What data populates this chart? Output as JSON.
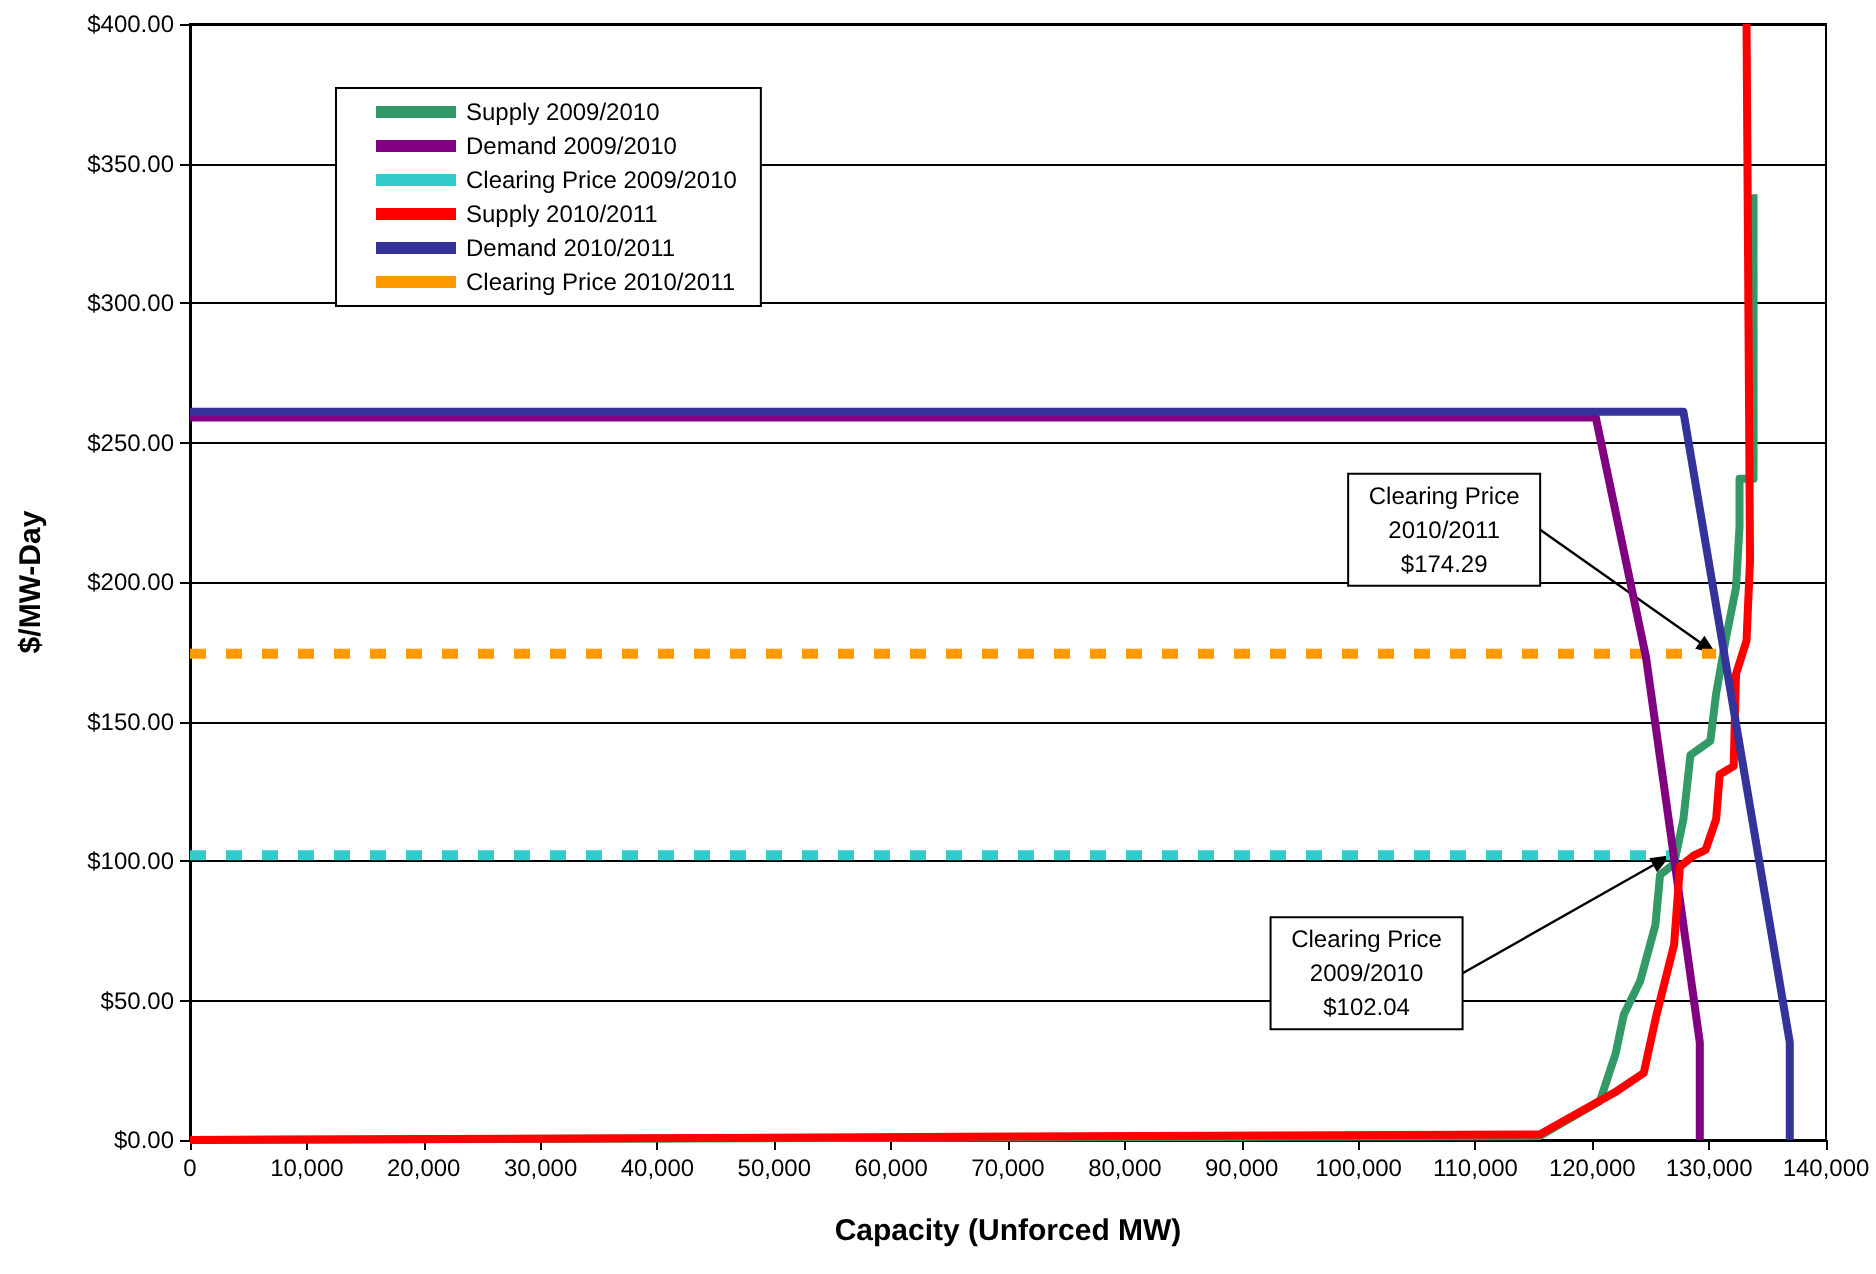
{
  "chart_data": {
    "type": "line",
    "xlabel": "Capacity (Unforced MW)",
    "ylabel": "$/MW-Day",
    "xlim": [
      0,
      140000
    ],
    "ylim": [
      0,
      400
    ],
    "xticks": [
      {
        "value": 0,
        "label": "0"
      },
      {
        "value": 10000,
        "label": "10,000"
      },
      {
        "value": 20000,
        "label": "20,000"
      },
      {
        "value": 30000,
        "label": "30,000"
      },
      {
        "value": 40000,
        "label": "40,000"
      },
      {
        "value": 50000,
        "label": "50,000"
      },
      {
        "value": 60000,
        "label": "60,000"
      },
      {
        "value": 70000,
        "label": "70,000"
      },
      {
        "value": 80000,
        "label": "80,000"
      },
      {
        "value": 90000,
        "label": "90,000"
      },
      {
        "value": 100000,
        "label": "100,000"
      },
      {
        "value": 110000,
        "label": "110,000"
      },
      {
        "value": 120000,
        "label": "120,000"
      },
      {
        "value": 130000,
        "label": "130,000"
      },
      {
        "value": 140000,
        "label": "140,000"
      }
    ],
    "yticks": [
      {
        "value": 0,
        "label": "$0.00"
      },
      {
        "value": 50,
        "label": "$50.00"
      },
      {
        "value": 100,
        "label": "$100.00"
      },
      {
        "value": 150,
        "label": "$150.00"
      },
      {
        "value": 200,
        "label": "$200.00"
      },
      {
        "value": 250,
        "label": "$250.00"
      },
      {
        "value": 300,
        "label": "$300.00"
      },
      {
        "value": 350,
        "label": "$350.00"
      },
      {
        "value": 400,
        "label": "$400.00"
      }
    ],
    "grid": "y",
    "legend": "top left",
    "marker": "none",
    "series": [
      {
        "name": "Supply 2009/2010",
        "color": "#339966",
        "line_style": "solid",
        "x": [
          0,
          115500,
          120660,
          122000,
          122700,
          124100,
          125400,
          125800,
          127000,
          127800,
          128400,
          130100,
          130600,
          131400,
          132300,
          132600,
          132600,
          133800,
          133800
        ],
        "values": [
          0,
          1.4,
          14,
          31,
          45,
          57,
          77,
          95,
          99,
          115,
          138,
          143,
          160,
          179,
          198,
          220,
          237,
          237,
          339
        ]
      },
      {
        "name": "Demand 2009/2010",
        "color": "#800080",
        "line_style": "solid",
        "x": [
          0,
          120300,
          124600,
          129200,
          129200
        ],
        "values": [
          259,
          259,
          173,
          35,
          0
        ]
      },
      {
        "name": "Clearing Price 2009/2010",
        "color": "#33cccc",
        "line_style": "dashed",
        "x": [
          0,
          126700
        ],
        "values": [
          102.04,
          102.04
        ]
      },
      {
        "name": "Supply 2010/2011",
        "color": "#ff0000",
        "line_style": "solid",
        "x": [
          0,
          115500,
          121900,
          124400,
          125500,
          127000,
          127500,
          128700,
          129700,
          130600,
          130900,
          132100,
          132300,
          133200,
          133500,
          133200
        ],
        "values": [
          0,
          2,
          17,
          24,
          45,
          70,
          98,
          102,
          104,
          115,
          131,
          134,
          167,
          179,
          208,
          400
        ]
      },
      {
        "name": "Demand 2010/2011",
        "color": "#333399",
        "line_style": "solid",
        "x": [
          0,
          127800,
          136900,
          136900
        ],
        "values": [
          261,
          261,
          35,
          0
        ]
      },
      {
        "name": "Clearing Price 2010/2011",
        "color": "#ff9900",
        "line_style": "dashed",
        "x": [
          0,
          130600
        ],
        "values": [
          174.29,
          174.29
        ]
      }
    ],
    "annotations": [
      {
        "text": "Clearing Price\n2010/2011\n$174.29",
        "x": 130600,
        "y": 174.29
      },
      {
        "text": "Clearing Price\n2009/2010\n$102.04",
        "x": 126700,
        "y": 102.04
      }
    ]
  }
}
